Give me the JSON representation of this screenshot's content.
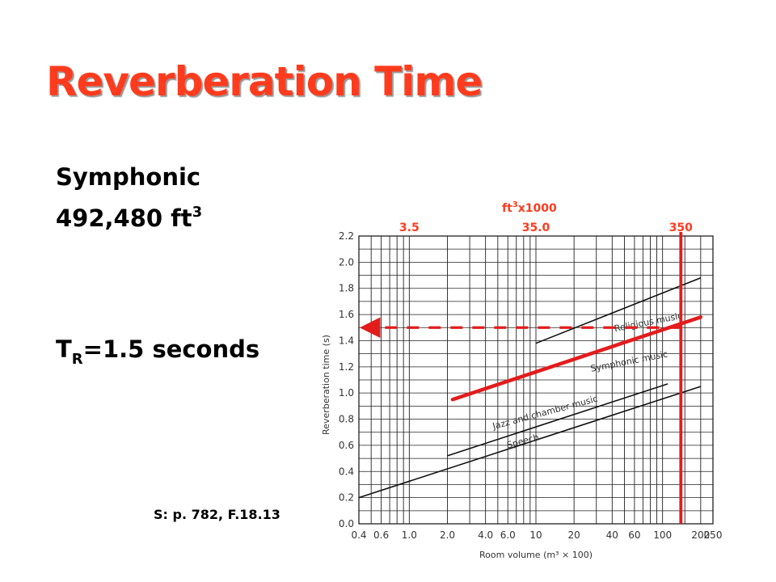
{
  "slide": {
    "title": "Reverberation Time",
    "subject": "Symphonic",
    "volume_text": "492,480 ft",
    "volume_unit_exponent": "3",
    "result_prefix": "T",
    "result_subscript": "R",
    "result_text": "=1.5 seconds",
    "source": "S: p. 782, F.18.13"
  },
  "annotation": {
    "top_axis_label": "ft",
    "top_axis_exponent": "3",
    "top_axis_suffix": "x1000",
    "top_ticks": [
      "3.5",
      "35.0",
      "350"
    ],
    "accent_color": "#ff3b1d",
    "line_color": "#e31c1c"
  },
  "chart_data": {
    "type": "line",
    "xlabel": "Room volume (m³ × 100)",
    "ylabel": "Reverberation time (s)",
    "xscale": "log",
    "x_tick_labels": [
      "0.4",
      "0.6",
      "1.0",
      "2.0",
      "4.0",
      "6.0",
      "10",
      "20",
      "40",
      "60",
      "100",
      "200",
      "250"
    ],
    "y_tick_labels": [
      "0.0",
      "0.2",
      "0.4",
      "0.6",
      "0.8",
      "1.0",
      "1.2",
      "1.4",
      "1.6",
      "1.8",
      "2.0",
      "2.2"
    ],
    "xlim": [
      0.4,
      250
    ],
    "ylim": [
      0,
      2.2
    ],
    "grid": true,
    "series": [
      {
        "name": "Religious music",
        "x": [
          10,
          200
        ],
        "y": [
          1.38,
          1.88
        ],
        "label": "Religious music",
        "color": "#111111"
      },
      {
        "name": "Symphonic music",
        "x": [
          2.2,
          200
        ],
        "y": [
          0.95,
          1.58
        ],
        "label": "Symphonic music",
        "color": "#111111"
      },
      {
        "name": "Jazz and chamber music",
        "x": [
          2.0,
          110
        ],
        "y": [
          0.52,
          1.07
        ],
        "label": "Jazz and chamber music",
        "color": "#111111"
      },
      {
        "name": "Speech",
        "x": [
          0.4,
          200
        ],
        "y": [
          0.2,
          1.05
        ],
        "label": "Speech",
        "color": "#111111"
      }
    ],
    "highlight": {
      "symphonic_overlay": {
        "x": [
          2.2,
          200
        ],
        "y": [
          0.95,
          1.58
        ],
        "color": "#e31c1c"
      },
      "volume_marker_x": 139.5,
      "result_y": 1.5,
      "arrow_color": "#e31c1c"
    }
  }
}
